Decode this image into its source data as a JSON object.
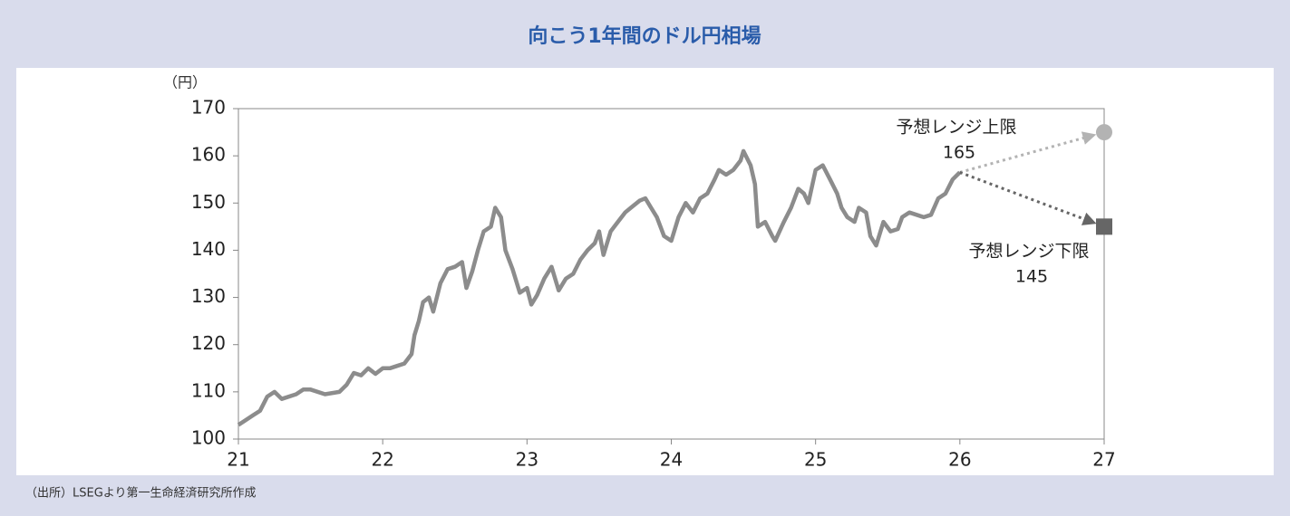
{
  "chart_data": {
    "type": "line",
    "title": "向こう1年間のドル円相場",
    "y_label": "（円）",
    "source": "（出所）LSEGより第一生命経済研究所作成",
    "xlim": [
      21,
      27
    ],
    "xticks": [
      21,
      22,
      23,
      24,
      25,
      26,
      27
    ],
    "ylim": [
      100,
      170
    ],
    "yticks": [
      100,
      110,
      120,
      130,
      140,
      150,
      160,
      170
    ],
    "series": [
      {
        "color": "#8c8c8c",
        "x": [
          21.0,
          21.05,
          21.1,
          21.15,
          21.2,
          21.25,
          21.3,
          21.4,
          21.45,
          21.5,
          21.6,
          21.7,
          21.75,
          21.8,
          21.85,
          21.9,
          21.95,
          22.0,
          22.05,
          22.1,
          22.15,
          22.2,
          22.22,
          22.25,
          22.28,
          22.32,
          22.35,
          22.4,
          22.45,
          22.5,
          22.55,
          22.58,
          22.62,
          22.66,
          22.7,
          22.75,
          22.78,
          22.82,
          22.85,
          22.9,
          22.95,
          23.0,
          23.03,
          23.07,
          23.12,
          23.17,
          23.22,
          23.27,
          23.32,
          23.37,
          23.42,
          23.47,
          23.5,
          23.53,
          23.58,
          23.63,
          23.68,
          23.72,
          23.78,
          23.82,
          23.86,
          23.9,
          23.95,
          24.0,
          24.05,
          24.1,
          24.15,
          24.2,
          24.25,
          24.3,
          24.33,
          24.38,
          24.43,
          24.48,
          24.5,
          24.55,
          24.58,
          24.6,
          24.65,
          24.7,
          24.72,
          24.78,
          24.83,
          24.88,
          24.92,
          24.95,
          25.0,
          25.05,
          25.1,
          25.15,
          25.18,
          25.22,
          25.27,
          25.3,
          25.35,
          25.38,
          25.42,
          25.47,
          25.52,
          25.57,
          25.6,
          25.65,
          25.7,
          25.75,
          25.8,
          25.85,
          25.9,
          25.95,
          26.0
        ],
        "values": [
          103,
          104,
          105,
          106,
          109,
          110,
          108.5,
          109.5,
          110.5,
          110.5,
          109.5,
          110,
          111.5,
          114,
          113.5,
          115,
          113.8,
          115,
          115,
          115.5,
          116,
          118,
          122,
          125,
          129,
          130,
          127,
          133,
          136,
          136.5,
          137.5,
          132,
          135.5,
          140,
          144,
          145,
          149,
          147,
          140,
          136,
          131,
          132,
          128.5,
          130.5,
          134,
          136.5,
          131.5,
          134,
          135,
          138,
          140,
          141.5,
          144,
          139,
          144,
          146,
          148,
          149,
          150.5,
          151,
          149,
          147,
          143,
          142,
          147,
          150,
          148,
          151,
          152,
          155,
          157,
          156,
          157,
          159,
          161,
          158,
          154,
          145,
          146,
          143,
          142,
          146,
          149,
          153,
          152,
          150,
          157,
          158,
          155,
          152,
          149,
          147,
          146,
          149,
          148,
          143,
          141,
          146,
          144,
          144.5,
          147,
          148,
          147.5,
          147,
          147.5,
          151,
          152,
          155,
          156.5
        ]
      },
      {
        "name": "予想レンジ上限",
        "color": "#b3b3b3",
        "x": [
          26,
          27
        ],
        "values": [
          156.5,
          165
        ]
      },
      {
        "name": "予想レンジ下限",
        "color": "#666666",
        "x": [
          26,
          27
        ],
        "values": [
          156.5,
          145
        ]
      }
    ]
  }
}
